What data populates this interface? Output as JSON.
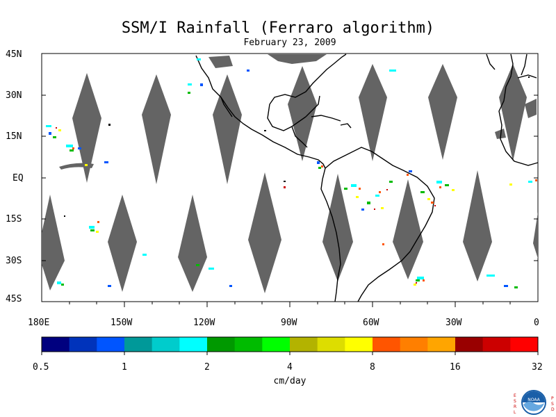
{
  "title": "SSM/I Rainfall (Ferraro algorithm)",
  "date": "February 23, 2009",
  "lat_labels": [
    "45N",
    "30N",
    "15N",
    "EQ",
    "15S",
    "30S",
    "45S"
  ],
  "lon_labels": [
    "180E",
    "150W",
    "120W",
    "90W",
    "60W",
    "30W",
    "0"
  ],
  "colorbar": {
    "units": "cm/day",
    "tick_labels": [
      "0.5",
      "1",
      "2",
      "4",
      "8",
      "16",
      "32"
    ],
    "colors": [
      "#00007f",
      "#0033bb",
      "#0055ff",
      "#009999",
      "#00cccc",
      "#00ffff",
      "#009900",
      "#00bb00",
      "#00ff00",
      "#b3b300",
      "#dddd00",
      "#ffff00",
      "#ff5500",
      "#ff7f00",
      "#ffa500",
      "#990000",
      "#cc0000",
      "#ff0000"
    ]
  },
  "logo": {
    "text": "NOAA",
    "left_letters": "ESRL",
    "right_letters": "PSD"
  },
  "colors": {
    "swath_gap": "#646464",
    "land_outline": "#000000"
  }
}
